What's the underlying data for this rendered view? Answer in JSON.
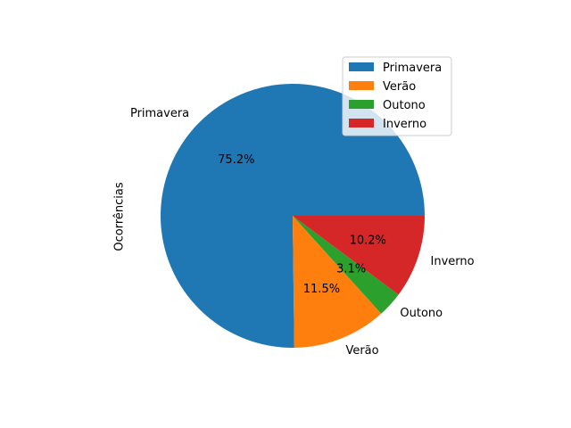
{
  "chart_data": {
    "type": "pie",
    "ylabel": "Ocorrências",
    "categories": [
      "Primavera",
      "Verão",
      "Outono",
      "Inverno"
    ],
    "values": [
      75.2,
      11.5,
      3.1,
      10.2
    ],
    "percent_labels": [
      "75.2%",
      "11.5%",
      "3.1%",
      "10.2%"
    ],
    "colors": [
      "#1f77b4",
      "#ff7f0e",
      "#2ca02c",
      "#d62728"
    ],
    "start_angle_deg": 0,
    "direction": "counterclockwise",
    "legend": {
      "position": "upper-right",
      "entries": [
        "Primavera",
        "Verão",
        "Outono",
        "Inverno"
      ]
    }
  }
}
